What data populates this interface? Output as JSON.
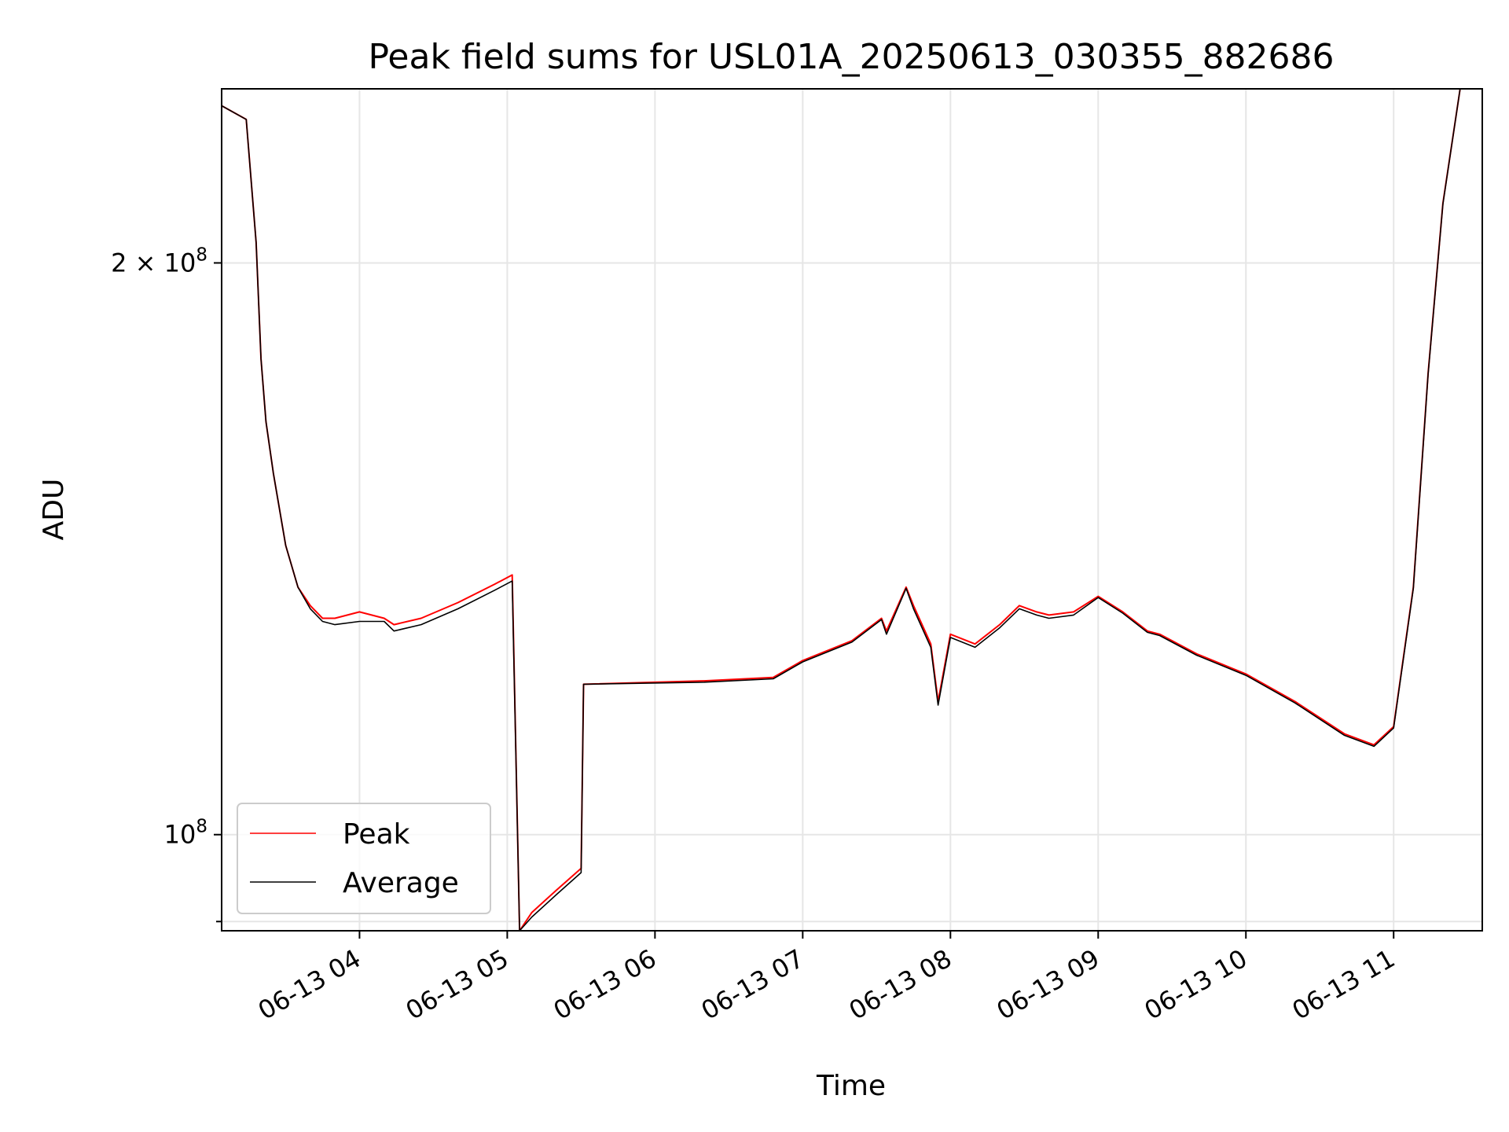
{
  "chart_data": {
    "type": "line",
    "title": "Peak field sums for USL01A_20250613_030355_882686",
    "xlabel": "Time",
    "ylabel": "ADU",
    "yscale": "log",
    "xlim": [
      "06-13 03:04",
      "06-13 11:36"
    ],
    "ylim": [
      89000000,
      247000000
    ],
    "x_ticks": [
      "06-13 04",
      "06-13 05",
      "06-13 06",
      "06-13 07",
      "06-13 08",
      "06-13 09",
      "06-13 10",
      "06-13 11"
    ],
    "y_ticks": [
      {
        "value": 200000000,
        "base": "2 × 10",
        "exp": "8"
      },
      {
        "value": 100000000,
        "base": "10",
        "exp": "8"
      }
    ],
    "grid": true,
    "legend_position": "lower-left",
    "series": [
      {
        "name": "Peak",
        "color": "#ff0000",
        "x": [
          "06-13 03:04",
          "06-13 03:14",
          "06-13 03:18",
          "06-13 03:20",
          "06-13 03:22",
          "06-13 03:25",
          "06-13 03:30",
          "06-13 03:35",
          "06-13 03:40",
          "06-13 03:45",
          "06-13 03:50",
          "06-13 04:00",
          "06-13 04:10",
          "06-13 04:14",
          "06-13 04:25",
          "06-13 04:40",
          "06-13 04:55",
          "06-13 05:02",
          "06-13 05:05",
          "06-13 05:10",
          "06-13 05:20",
          "06-13 05:30",
          "06-13 05:31",
          "06-13 06:20",
          "06-13 06:48",
          "06-13 07:00",
          "06-13 07:20",
          "06-13 07:32",
          "06-13 07:34",
          "06-13 07:42",
          "06-13 07:45",
          "06-13 07:52",
          "06-13 07:55",
          "06-13 08:00",
          "06-13 08:10",
          "06-13 08:20",
          "06-13 08:28",
          "06-13 08:35",
          "06-13 08:40",
          "06-13 08:50",
          "06-13 09:00",
          "06-13 09:10",
          "06-13 09:20",
          "06-13 09:25",
          "06-13 09:40",
          "06-13 10:00",
          "06-13 10:20",
          "06-13 10:40",
          "06-13 10:52",
          "06-13 11:00",
          "06-13 11:08",
          "06-13 11:14",
          "06-13 11:20",
          "06-13 11:27"
        ],
        "values": [
          242000000,
          238000000,
          205000000,
          178000000,
          165000000,
          155000000,
          142000000,
          135000000,
          132000000,
          130000000,
          130000000,
          131000000,
          130000000,
          129000000,
          130000000,
          132500000,
          135500000,
          137000000,
          89000000,
          91000000,
          93500000,
          96000000,
          120000000,
          120500000,
          121000000,
          123500000,
          126500000,
          130000000,
          128000000,
          135000000,
          132000000,
          126000000,
          117500000,
          127500000,
          126000000,
          129000000,
          132000000,
          131000000,
          130500000,
          131000000,
          133500000,
          131000000,
          128000000,
          127500000,
          124500000,
          121500000,
          117500000,
          113000000,
          111500000,
          114000000,
          135000000,
          175000000,
          215000000,
          247000000
        ]
      },
      {
        "name": "Average",
        "color": "#000000",
        "x": [
          "06-13 03:04",
          "06-13 03:14",
          "06-13 03:18",
          "06-13 03:20",
          "06-13 03:22",
          "06-13 03:25",
          "06-13 03:30",
          "06-13 03:35",
          "06-13 03:40",
          "06-13 03:45",
          "06-13 03:50",
          "06-13 04:00",
          "06-13 04:10",
          "06-13 04:14",
          "06-13 04:25",
          "06-13 04:40",
          "06-13 04:55",
          "06-13 05:02",
          "06-13 05:05",
          "06-13 05:10",
          "06-13 05:20",
          "06-13 05:30",
          "06-13 05:31",
          "06-13 06:20",
          "06-13 06:48",
          "06-13 07:00",
          "06-13 07:20",
          "06-13 07:32",
          "06-13 07:34",
          "06-13 07:42",
          "06-13 07:45",
          "06-13 07:52",
          "06-13 07:55",
          "06-13 08:00",
          "06-13 08:10",
          "06-13 08:20",
          "06-13 08:28",
          "06-13 08:35",
          "06-13 08:40",
          "06-13 08:50",
          "06-13 09:00",
          "06-13 09:10",
          "06-13 09:20",
          "06-13 09:25",
          "06-13 09:40",
          "06-13 10:00",
          "06-13 10:20",
          "06-13 10:40",
          "06-13 10:52",
          "06-13 11:00",
          "06-13 11:08",
          "06-13 11:14",
          "06-13 11:20",
          "06-13 11:27"
        ],
        "values": [
          242000000,
          238000000,
          205000000,
          178000000,
          165000000,
          155000000,
          142000000,
          135000000,
          131500000,
          129500000,
          129000000,
          129500000,
          129500000,
          128000000,
          129000000,
          131500000,
          134500000,
          136000000,
          89000000,
          90500000,
          93000000,
          95500000,
          120000000,
          120300000,
          120800000,
          123300000,
          126300000,
          129800000,
          127500000,
          134800000,
          131500000,
          125500000,
          117000000,
          127000000,
          125500000,
          128500000,
          131500000,
          130500000,
          130000000,
          130500000,
          133300000,
          130800000,
          127800000,
          127300000,
          124300000,
          121300000,
          117300000,
          112800000,
          111300000,
          113800000,
          134800000,
          174800000,
          214800000,
          247000000
        ]
      }
    ]
  }
}
